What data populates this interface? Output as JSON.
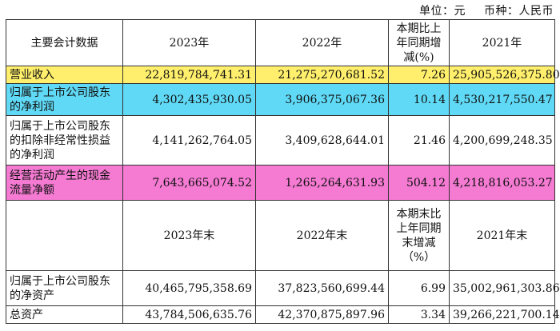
{
  "unit": {
    "unit_label": "单位：元",
    "currency_label": "币种：人民币"
  },
  "header1": {
    "item": "主要会计数据",
    "y2023": "2023年",
    "y2022": "2022年",
    "change": "本期比上年同期增减(%)",
    "y2021": "2021年"
  },
  "rows1": [
    {
      "label": "营业收入",
      "y2023": "22,819,784,741.31",
      "y2022": "21,275,270,681.52",
      "change": "7.26",
      "y2021": "25,905,526,375.80",
      "highlight": "#ffef6c"
    },
    {
      "label": "归属于上市公司股东的净利润",
      "y2023": "4,302,435,930.05",
      "y2022": "3,906,375,067.36",
      "change": "10.14",
      "y2021": "4,530,217,550.47",
      "highlight": "#5fd9f5"
    },
    {
      "label": "归属于上市公司股东的扣除非经常性损益的净利润",
      "y2023": "4,141,262,764.05",
      "y2022": "3,409,628,644.01",
      "change": "21.46",
      "y2021": "4,200,699,248.35",
      "highlight": ""
    },
    {
      "label": "经营活动产生的现金流量净额",
      "y2023": "7,643,665,074.52",
      "y2022": "1,265,264,631.93",
      "change": "504.12",
      "y2021": "4,218,816,053.27",
      "highlight": "#f47ad2"
    }
  ],
  "header2": {
    "item": "",
    "y2023": "2023年末",
    "y2022": "2022年末",
    "change": "本期末比上年同期末增减（%）",
    "y2021": "2021年末"
  },
  "rows2": [
    {
      "label": "归属于上市公司股东的净资产",
      "y2023": "40,465,795,358.69",
      "y2022": "37,823,560,699.44",
      "change": "6.99",
      "y2021": "35,002,961,303.86"
    },
    {
      "label": "总资产",
      "y2023": "43,784,506,635.76",
      "y2022": "42,370,875,897.96",
      "change": "3.34",
      "y2021": "39,266,221,700.14"
    }
  ]
}
